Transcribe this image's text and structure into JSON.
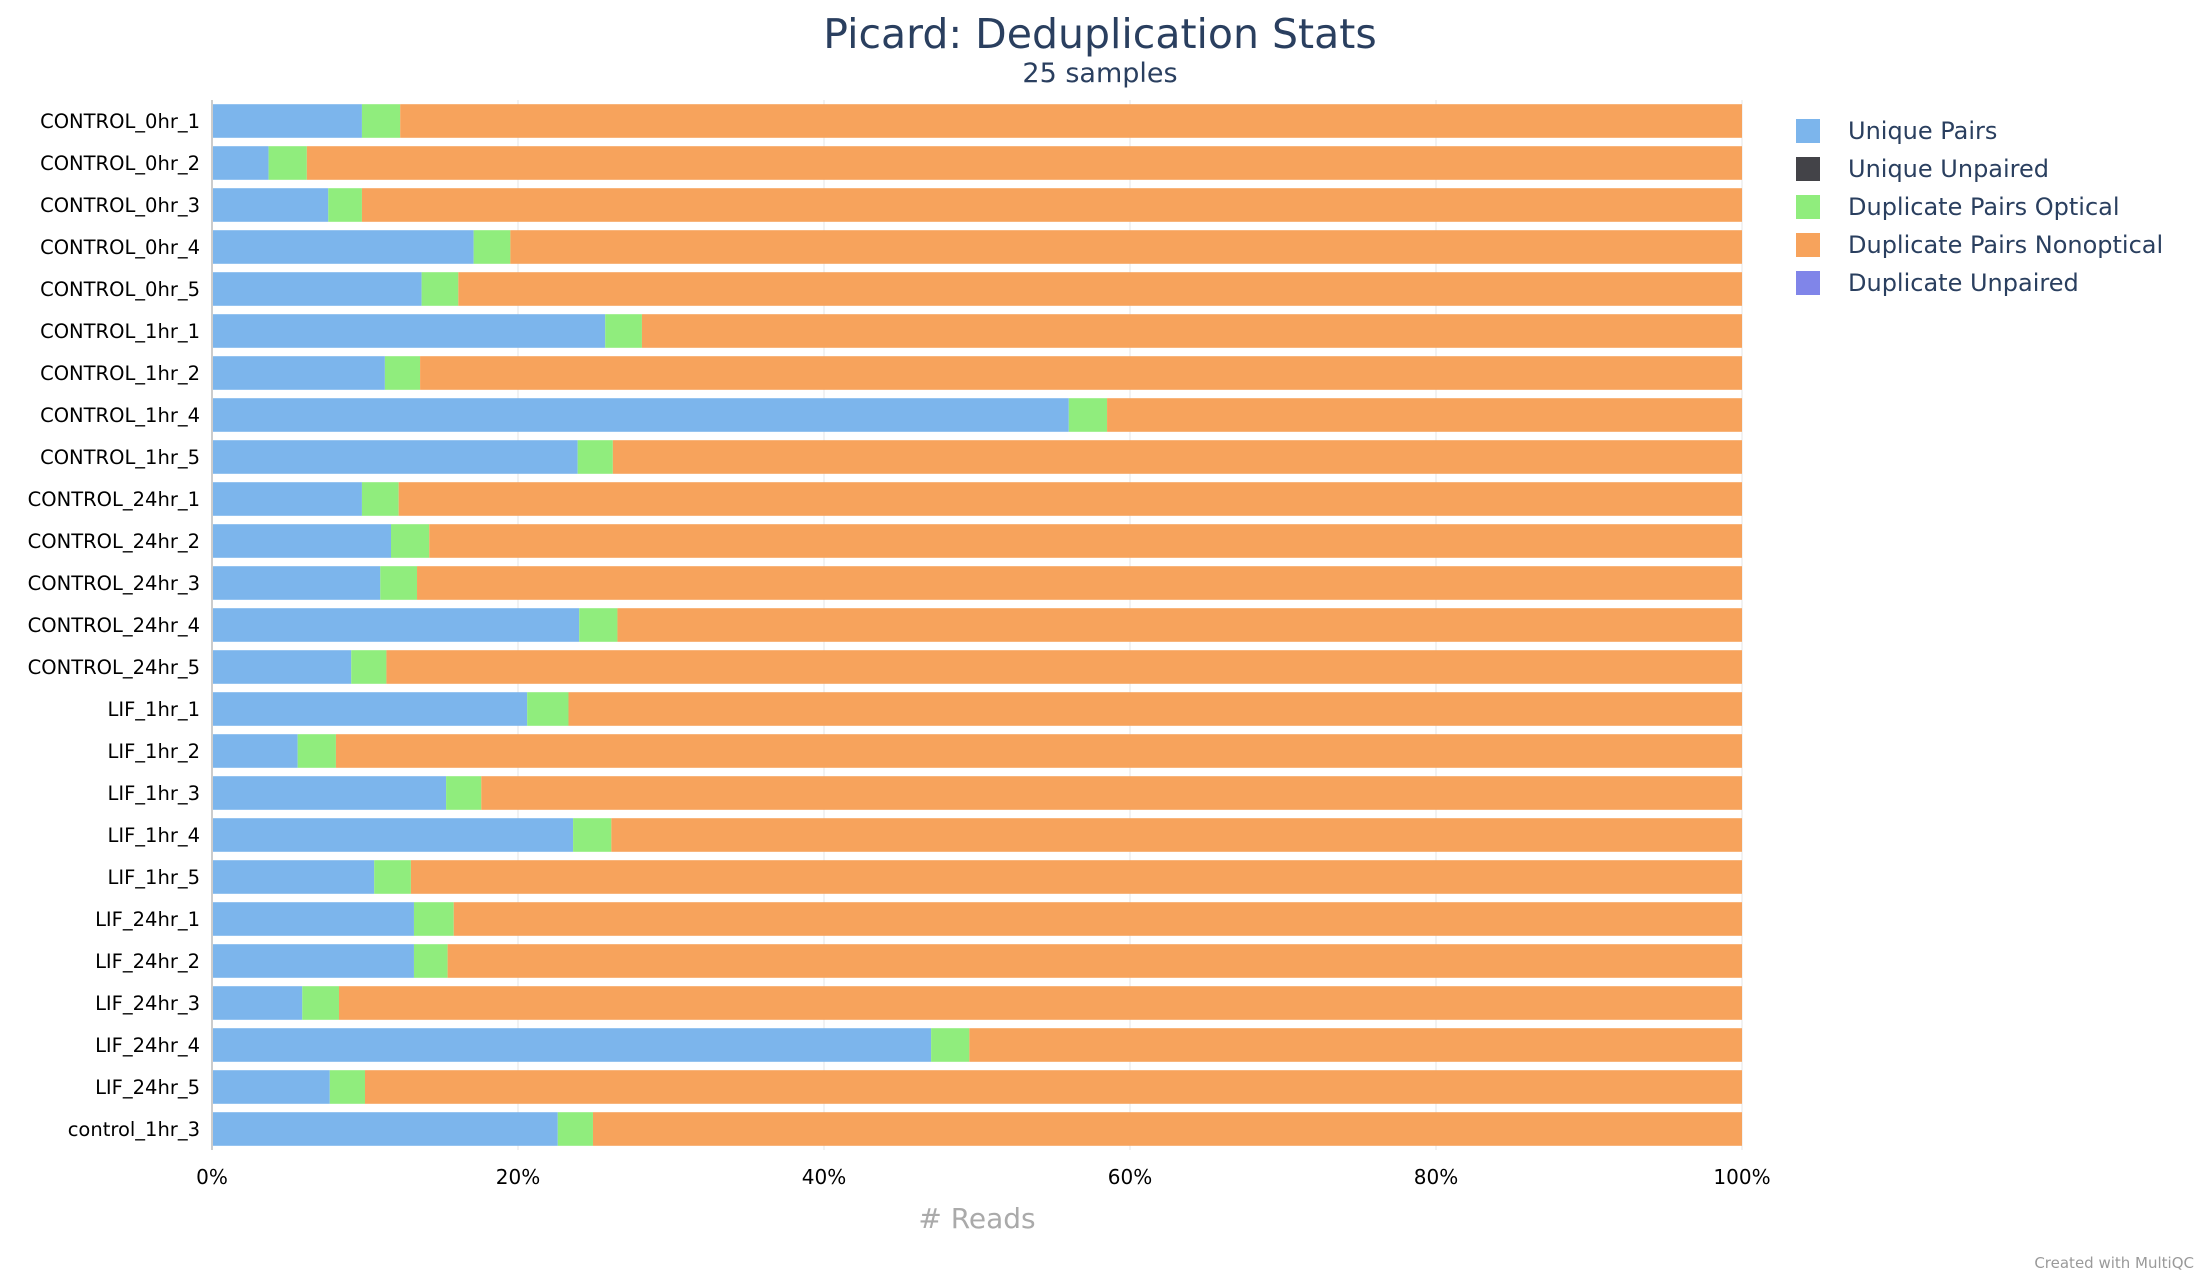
{
  "chart_data": {
    "type": "bar",
    "orientation": "horizontal",
    "stacked": "percent",
    "title": "Picard: Deduplication Stats",
    "subtitle": "25 samples",
    "xlabel": "# Reads",
    "x_ticks": [
      "0%",
      "20%",
      "40%",
      "60%",
      "80%",
      "100%"
    ],
    "xlim": [
      0,
      100
    ],
    "legend_position": "top-right",
    "grid": true,
    "categories": [
      "CONTROL_0hr_1",
      "CONTROL_0hr_2",
      "CONTROL_0hr_3",
      "CONTROL_0hr_4",
      "CONTROL_0hr_5",
      "CONTROL_1hr_1",
      "CONTROL_1hr_2",
      "CONTROL_1hr_4",
      "CONTROL_1hr_5",
      "CONTROL_24hr_1",
      "CONTROL_24hr_2",
      "CONTROL_24hr_3",
      "CONTROL_24hr_4",
      "CONTROL_24hr_5",
      "LIF_1hr_1",
      "LIF_1hr_2",
      "LIF_1hr_3",
      "LIF_1hr_4",
      "LIF_1hr_5",
      "LIF_24hr_1",
      "LIF_24hr_2",
      "LIF_24hr_3",
      "LIF_24hr_4",
      "LIF_24hr_5",
      "control_1hr_3"
    ],
    "series": [
      {
        "name": "Unique Pairs",
        "color": "#7cb5ec",
        "values": [
          9.8,
          3.7,
          7.6,
          17.1,
          13.7,
          25.7,
          11.3,
          56.0,
          23.9,
          9.8,
          11.7,
          11.0,
          24.0,
          9.1,
          20.6,
          5.6,
          15.3,
          23.6,
          10.6,
          13.2,
          13.2,
          5.9,
          47.0,
          7.7,
          22.6
        ]
      },
      {
        "name": "Unique Unpaired",
        "color": "#434348",
        "values": [
          0,
          0,
          0,
          0,
          0,
          0,
          0,
          0,
          0,
          0,
          0,
          0,
          0,
          0,
          0,
          0,
          0,
          0,
          0,
          0,
          0,
          0,
          0,
          0,
          0
        ]
      },
      {
        "name": "Duplicate Pairs Optical",
        "color": "#90ed7d",
        "values": [
          2.5,
          2.5,
          2.2,
          2.4,
          2.4,
          2.4,
          2.3,
          2.5,
          2.3,
          2.4,
          2.5,
          2.4,
          2.5,
          2.3,
          2.7,
          2.5,
          2.3,
          2.5,
          2.4,
          2.6,
          2.2,
          2.4,
          2.5,
          2.3,
          2.3
        ]
      },
      {
        "name": "Duplicate Pairs Nonoptical",
        "color": "#f7a35c",
        "values": [
          87.7,
          93.8,
          90.2,
          80.5,
          83.9,
          71.9,
          86.4,
          41.5,
          73.8,
          87.8,
          85.8,
          86.6,
          73.5,
          88.6,
          76.7,
          91.9,
          82.4,
          73.9,
          87.0,
          84.2,
          84.6,
          91.7,
          50.5,
          90.0,
          75.1
        ]
      },
      {
        "name": "Duplicate Unpaired",
        "color": "#8085e9",
        "values": [
          0,
          0,
          0,
          0,
          0,
          0,
          0,
          0,
          0,
          0,
          0,
          0,
          0,
          0,
          0,
          0,
          0,
          0,
          0,
          0,
          0,
          0,
          0,
          0,
          0
        ]
      }
    ]
  },
  "credit": "Created with MultiQC"
}
